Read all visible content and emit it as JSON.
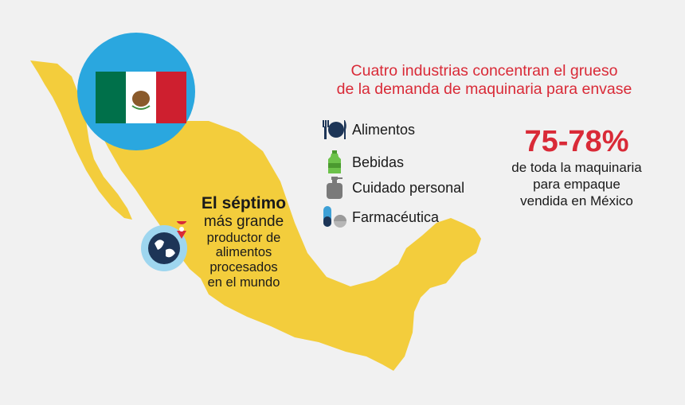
{
  "headline": {
    "line1": "Cuatro industrias concentran el grueso",
    "line2": "de la demanda de maquinaria para envase"
  },
  "industries": [
    {
      "label": "Alimentos",
      "icon": "fork-plate-knife-icon"
    },
    {
      "label": "Bebidas",
      "icon": "bottle-icon"
    },
    {
      "label": "Cuidado personal",
      "icon": "spray-bottle-icon"
    },
    {
      "label": "Farmacéutica",
      "icon": "pill-capsule-icon"
    }
  ],
  "stat": {
    "value": "75-78%",
    "line1": "de toda la maquinaria",
    "line2": "para empaque",
    "line3": "vendida en México"
  },
  "claim": {
    "line1": "El séptimo",
    "line2": "más grande",
    "line3": "productor de",
    "line4": "alimentos",
    "line5": "procesados",
    "line6": "en el mundo"
  },
  "colors": {
    "background": "#f1f1f1",
    "map": "#f3cd3c",
    "accent_red": "#d92a37",
    "flag_circle": "#2aa7df",
    "flag_green": "#00704a",
    "flag_red": "#ce1f2f",
    "icon_dark": "#1d3557",
    "icon_green": "#6cc24a",
    "icon_gray": "#7a7a7a",
    "icon_blue": "#3da0d6"
  },
  "icons": {
    "flag": "mexico-flag-icon",
    "globe": "globe-pin-icon"
  }
}
